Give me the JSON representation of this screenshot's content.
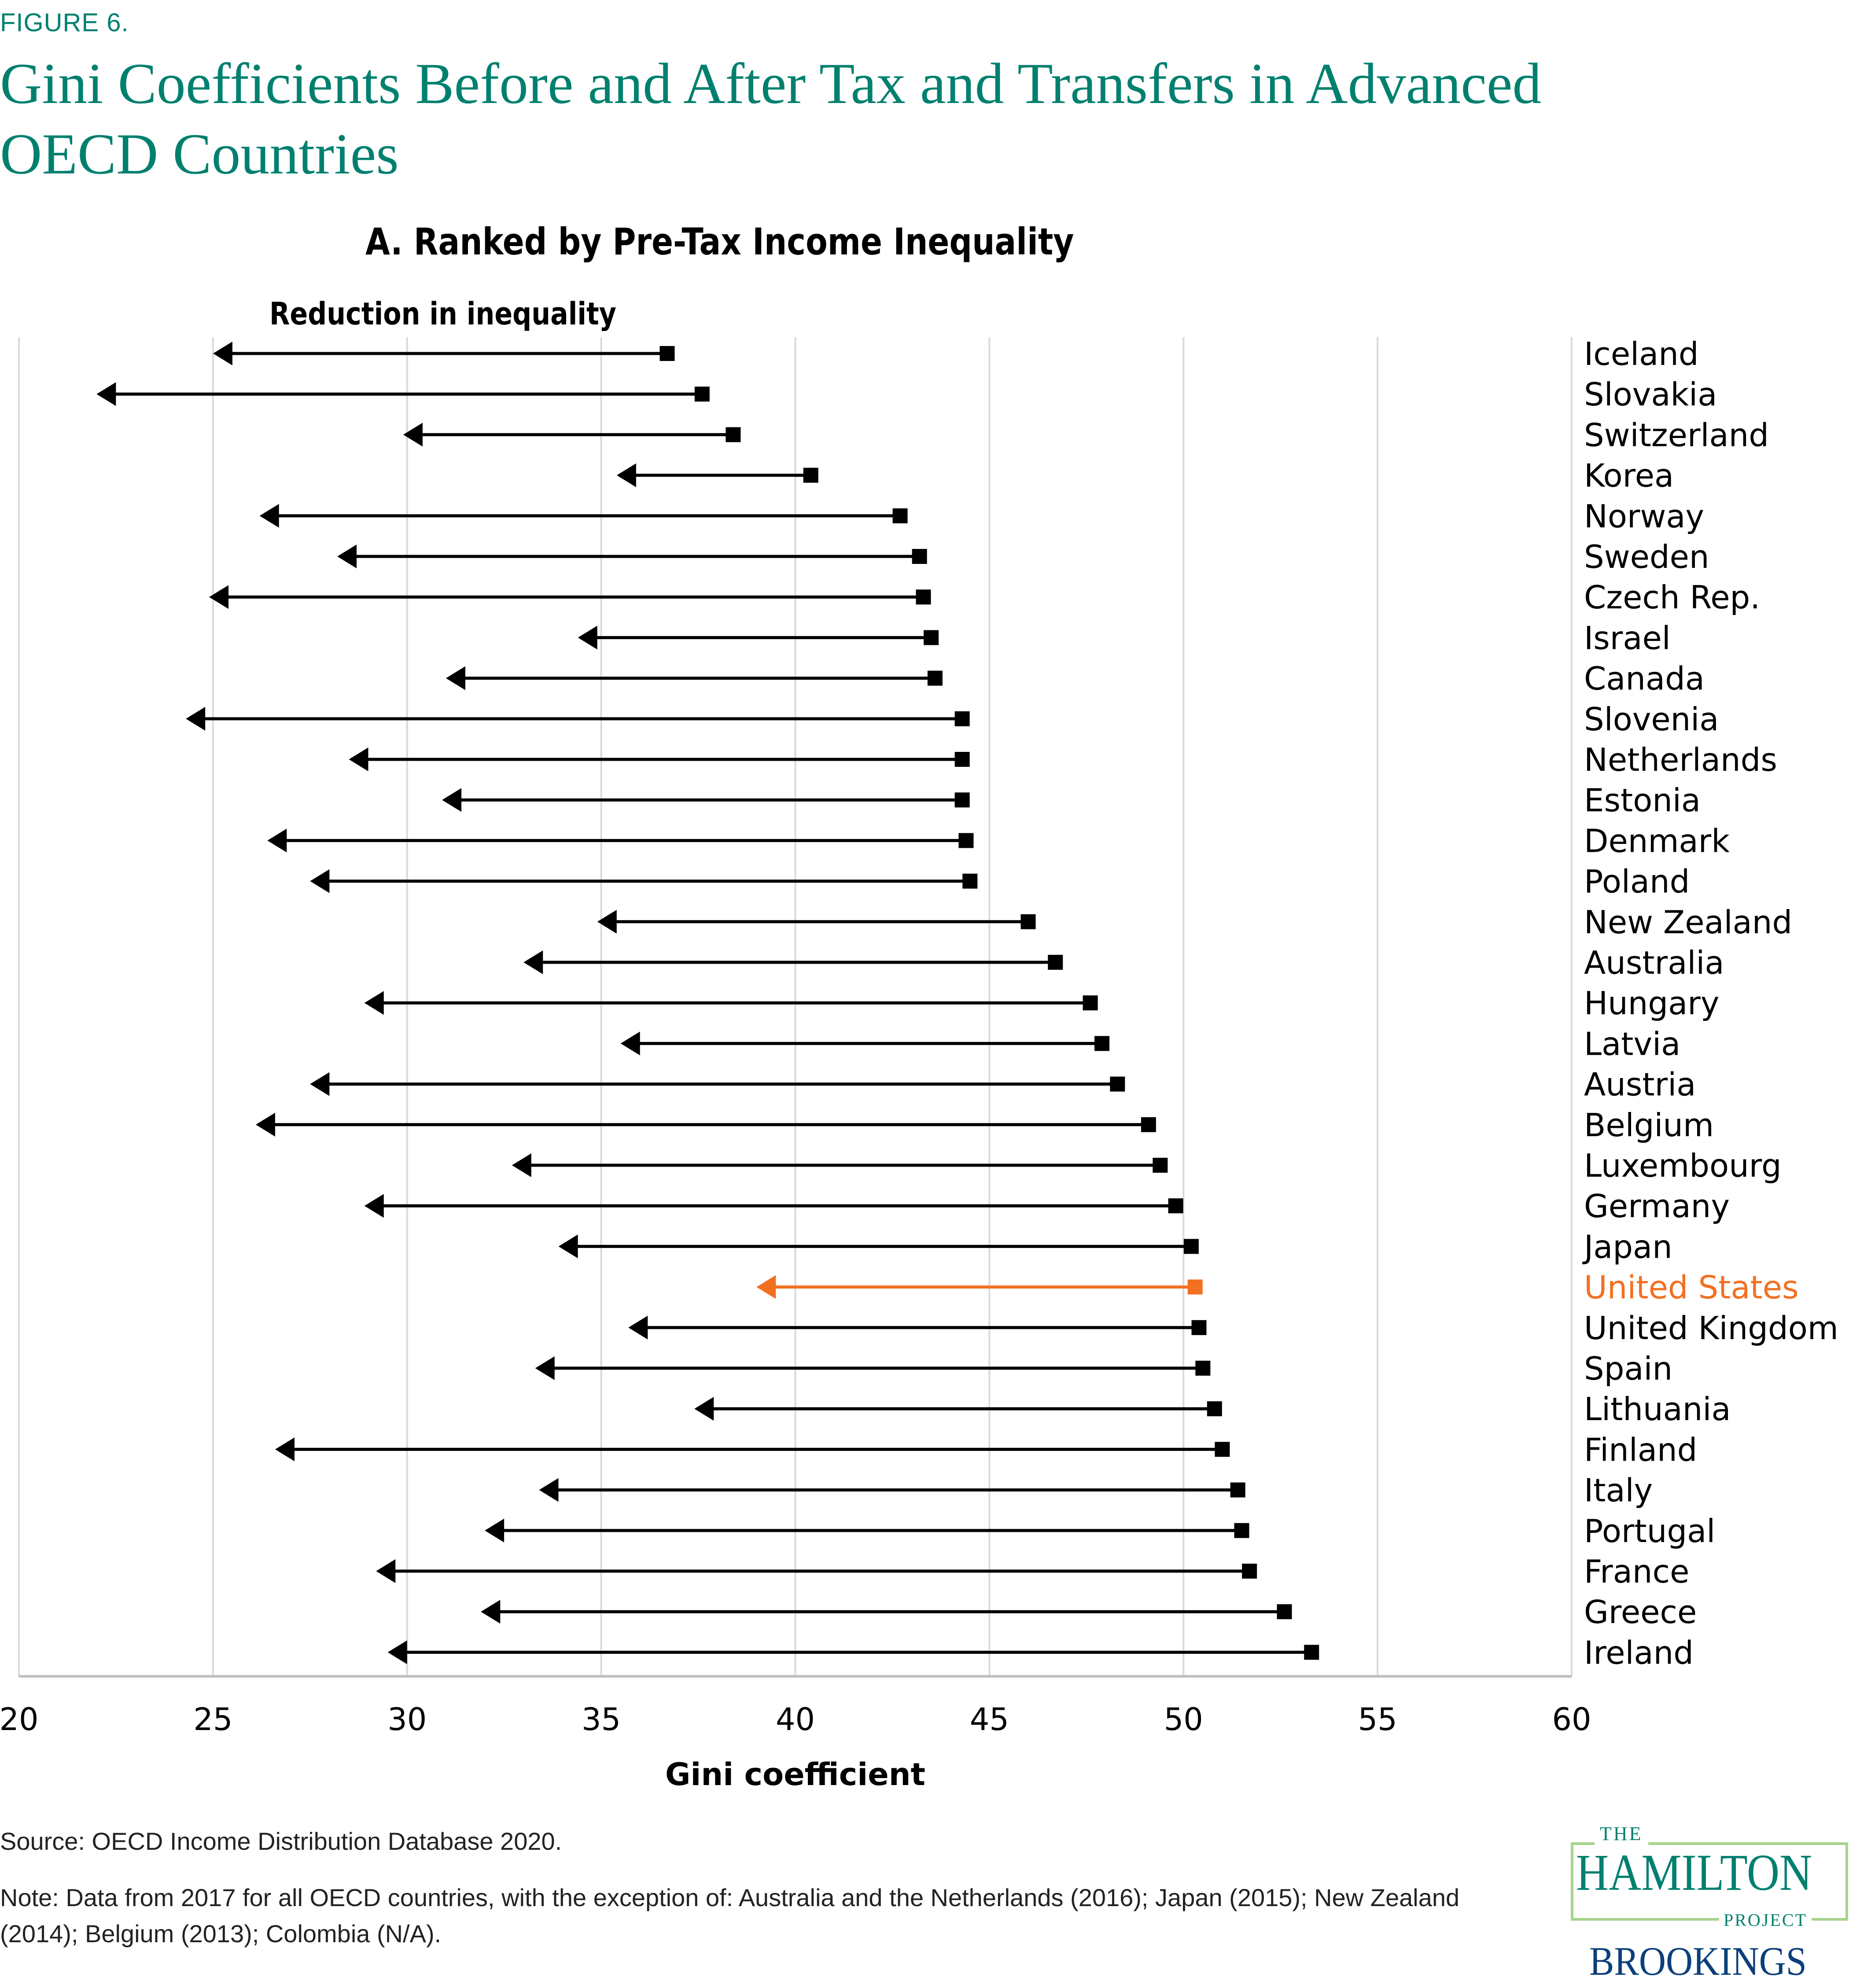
{
  "figure_label": "FIGURE 6.",
  "title": "Gini Coefficients Before and After Tax and Transfers in Advanced OECD Countries",
  "panel_title": "A. Ranked by Pre-Tax Income Inequality",
  "annotation": "Reduction in inequality",
  "source": "Source: OECD Income Distribution Database 2020.",
  "note": "Note: Data from 2017 for all OECD countries, with the exception of: Australia and the Netherlands (2016); Japan (2015); New Zealand (2014); Belgium (2013); Colombia (N/A).",
  "logo": {
    "the": "THE",
    "hamilton": "HAMILTON",
    "project": "PROJECT",
    "brookings": "BROOKINGS"
  },
  "colors": {
    "teal": "#00806f",
    "highlight": "#f37021",
    "default_series": "#000000",
    "grid": "#d9d9d9",
    "brookings_blue": "#0b3f7a",
    "logo_green": "#a7d38c"
  },
  "chart_data": {
    "type": "arrow-dot",
    "title": "A. Ranked by Pre-Tax Income Inequality",
    "xlabel": "Gini coefficient",
    "ylabel": "",
    "xlim": [
      20,
      60
    ],
    "xticks": [
      20,
      25,
      30,
      35,
      40,
      45,
      50,
      55,
      60
    ],
    "grid": "vertical",
    "annotation": "Reduction in inequality",
    "series": [
      {
        "name": "Pre-tax Gini (square marker)",
        "key": "pre"
      },
      {
        "name": "Post-tax Gini (arrow head)",
        "key": "post"
      }
    ],
    "highlight_country": "United States",
    "countries": [
      {
        "name": "Iceland",
        "pre": 36.7,
        "post": 25.0
      },
      {
        "name": "Slovakia",
        "pre": 37.6,
        "post": 22.0
      },
      {
        "name": "Switzerland",
        "pre": 38.4,
        "post": 29.9
      },
      {
        "name": "Korea",
        "pre": 40.4,
        "post": 35.4
      },
      {
        "name": "Norway",
        "pre": 42.7,
        "post": 26.2
      },
      {
        "name": "Sweden",
        "pre": 43.2,
        "post": 28.2
      },
      {
        "name": "Czech Rep.",
        "pre": 43.3,
        "post": 24.9
      },
      {
        "name": "Israel",
        "pre": 43.5,
        "post": 34.4
      },
      {
        "name": "Canada",
        "pre": 43.6,
        "post": 31.0
      },
      {
        "name": "Slovenia",
        "pre": 44.3,
        "post": 24.3
      },
      {
        "name": "Netherlands",
        "pre": 44.3,
        "post": 28.5
      },
      {
        "name": "Estonia",
        "pre": 44.3,
        "post": 30.9
      },
      {
        "name": "Denmark",
        "pre": 44.4,
        "post": 26.4
      },
      {
        "name": "Poland",
        "pre": 44.5,
        "post": 27.5
      },
      {
        "name": "New Zealand",
        "pre": 46.0,
        "post": 34.9
      },
      {
        "name": "Australia",
        "pre": 46.7,
        "post": 33.0
      },
      {
        "name": "Hungary",
        "pre": 47.6,
        "post": 28.9
      },
      {
        "name": "Latvia",
        "pre": 47.9,
        "post": 35.5
      },
      {
        "name": "Austria",
        "pre": 48.3,
        "post": 27.5
      },
      {
        "name": "Belgium",
        "pre": 49.1,
        "post": 26.1
      },
      {
        "name": "Luxembourg",
        "pre": 49.4,
        "post": 32.7
      },
      {
        "name": "Germany",
        "pre": 49.8,
        "post": 28.9
      },
      {
        "name": "Japan",
        "pre": 50.2,
        "post": 33.9
      },
      {
        "name": "United States",
        "pre": 50.3,
        "post": 39.0
      },
      {
        "name": "United Kingdom",
        "pre": 50.4,
        "post": 35.7
      },
      {
        "name": "Spain",
        "pre": 50.5,
        "post": 33.3
      },
      {
        "name": "Lithuania",
        "pre": 50.8,
        "post": 37.4
      },
      {
        "name": "Finland",
        "pre": 51.0,
        "post": 26.6
      },
      {
        "name": "Italy",
        "pre": 51.4,
        "post": 33.4
      },
      {
        "name": "Portugal",
        "pre": 51.5,
        "post": 32.0
      },
      {
        "name": "France",
        "pre": 51.7,
        "post": 29.2
      },
      {
        "name": "Greece",
        "pre": 52.6,
        "post": 31.9
      },
      {
        "name": "Ireland",
        "pre": 53.3,
        "post": 29.5
      }
    ]
  }
}
